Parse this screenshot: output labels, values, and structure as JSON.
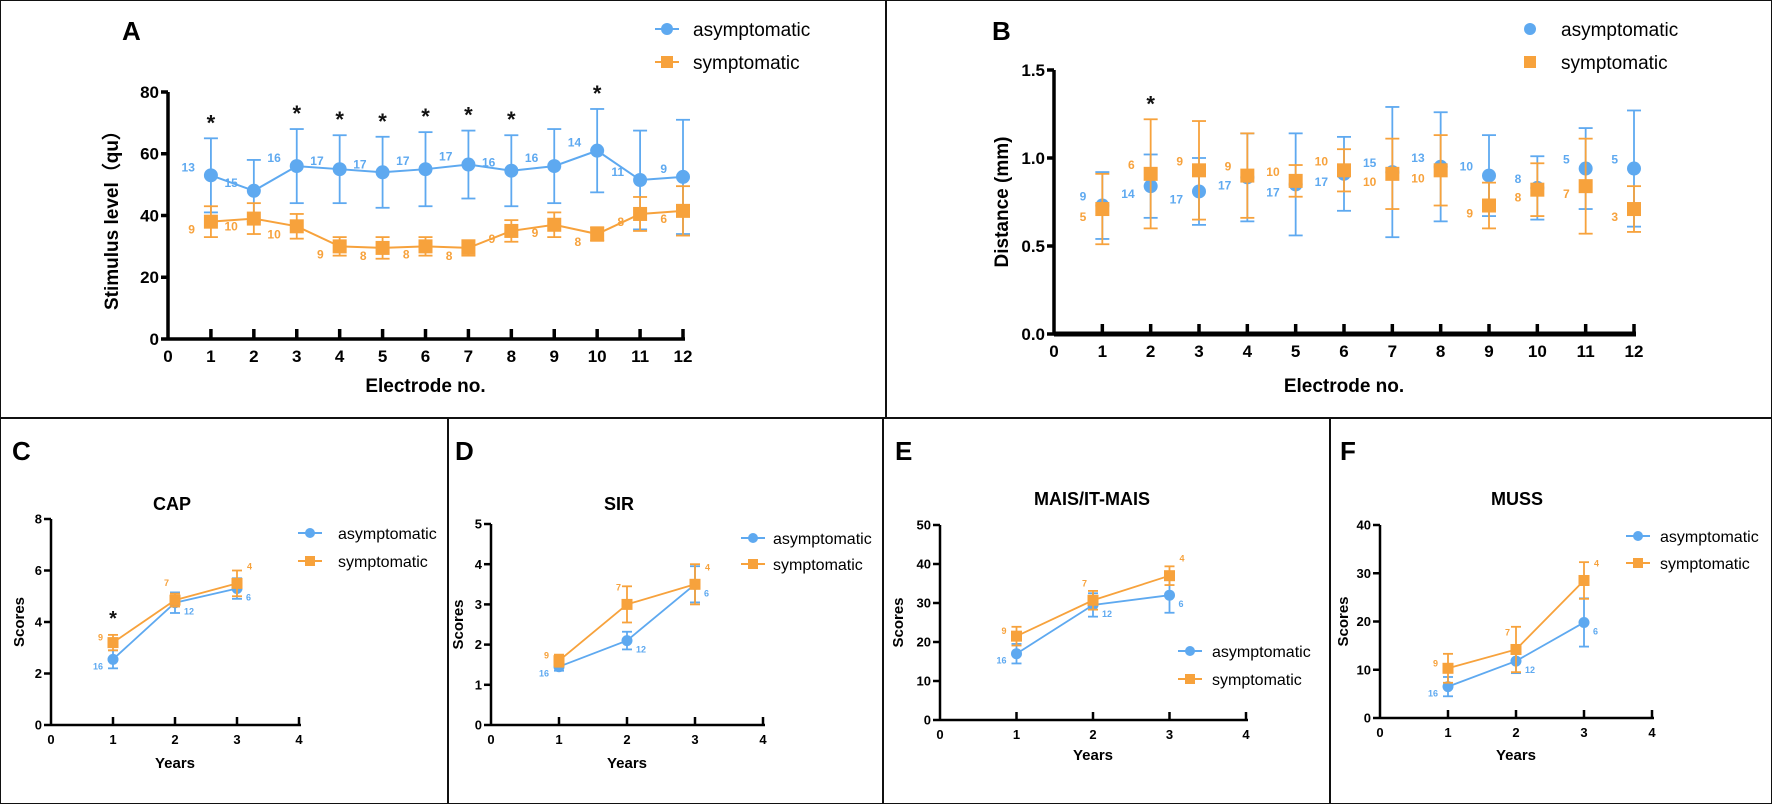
{
  "colors": {
    "asymptomatic": "#5ea9f0",
    "symptomatic": "#f7a23c",
    "axis": "#000000",
    "star": "#111111"
  },
  "legend_labels": [
    "asymptomatic",
    "symptomatic"
  ],
  "chart_data": [
    {
      "panel": "A",
      "type": "line",
      "title": "",
      "xlabel": "Electrode no.",
      "ylabel": "Stimulus level（qu）",
      "xlim": [
        0,
        12
      ],
      "ylim": [
        0,
        80
      ],
      "xticks": [
        0,
        1,
        2,
        3,
        4,
        5,
        6,
        7,
        8,
        9,
        10,
        11,
        12
      ],
      "yticks": [
        0,
        20,
        40,
        60,
        80
      ],
      "x": [
        1,
        2,
        3,
        4,
        5,
        6,
        7,
        8,
        9,
        10,
        11,
        12
      ],
      "series": [
        {
          "name": "asymptomatic",
          "marker": "circle",
          "connected": true,
          "values": [
            53,
            48,
            56,
            55,
            54,
            55,
            56.5,
            54.5,
            56,
            61,
            51.5,
            52.5
          ],
          "error": [
            12,
            10,
            12,
            11,
            11.5,
            12,
            11,
            11.5,
            12,
            13.5,
            16,
            18.5
          ],
          "n": [
            13,
            15,
            16,
            17,
            17,
            17,
            17,
            16,
            16,
            14,
            11,
            9
          ]
        },
        {
          "name": "symptomatic",
          "marker": "square",
          "connected": true,
          "values": [
            38,
            39,
            36.5,
            30,
            29.5,
            30,
            29.5,
            35,
            37,
            34,
            40.5,
            41.5
          ],
          "error": [
            5,
            5,
            4,
            3,
            3.5,
            3,
            2.5,
            3.5,
            4,
            2.2,
            5.5,
            8
          ],
          "n": [
            9,
            10,
            10,
            9,
            8,
            8,
            8,
            9,
            9,
            8,
            8,
            6
          ]
        }
      ],
      "significance_marks": {
        "symbol": "*",
        "x": [
          1,
          3,
          4,
          5,
          6,
          7,
          8,
          10
        ]
      },
      "legend": "top-right"
    },
    {
      "panel": "B",
      "type": "scatter",
      "title": "",
      "xlabel": "Electrode no.",
      "ylabel": "Distance (mm)",
      "xlim": [
        0,
        12
      ],
      "ylim": [
        0,
        1.5
      ],
      "xticks": [
        0,
        1,
        2,
        3,
        4,
        5,
        6,
        7,
        8,
        9,
        10,
        11,
        12
      ],
      "yticks": [
        0.0,
        0.5,
        1.0,
        1.5
      ],
      "x": [
        1,
        2,
        3,
        4,
        5,
        6,
        7,
        8,
        9,
        10,
        11,
        12
      ],
      "series": [
        {
          "name": "asymptomatic",
          "marker": "circle",
          "connected": false,
          "values": [
            0.73,
            0.84,
            0.81,
            0.89,
            0.85,
            0.91,
            0.92,
            0.95,
            0.9,
            0.83,
            0.94,
            0.94
          ],
          "error": [
            0.19,
            0.18,
            0.19,
            0.25,
            0.29,
            0.21,
            0.37,
            0.31,
            0.23,
            0.18,
            0.23,
            0.33
          ],
          "n": [
            9,
            14,
            17,
            17,
            17,
            17,
            15,
            13,
            10,
            8,
            5,
            5
          ]
        },
        {
          "name": "symptomatic",
          "marker": "square",
          "connected": false,
          "values": [
            0.71,
            0.91,
            0.93,
            0.9,
            0.87,
            0.93,
            0.91,
            0.93,
            0.73,
            0.82,
            0.84,
            0.71
          ],
          "error": [
            0.2,
            0.31,
            0.28,
            0.24,
            0.09,
            0.12,
            0.2,
            0.2,
            0.13,
            0.15,
            0.27,
            0.13
          ],
          "n": [
            5,
            6,
            9,
            9,
            10,
            10,
            10,
            10,
            9,
            8,
            7,
            3
          ]
        }
      ],
      "significance_marks": {
        "symbol": "*",
        "x": [
          2
        ]
      },
      "legend": "top-right"
    },
    {
      "panel": "C",
      "type": "line",
      "title": "CAP",
      "xlabel": "Years",
      "ylabel": "Scores",
      "xlim": [
        0,
        4
      ],
      "ylim": [
        0,
        8
      ],
      "xticks": [
        0,
        1,
        2,
        3,
        4
      ],
      "yticks": [
        0,
        2,
        4,
        6,
        8
      ],
      "x": [
        1,
        2,
        3
      ],
      "series": [
        {
          "name": "asymptomatic",
          "marker": "circle",
          "connected": true,
          "values": [
            2.55,
            4.75,
            5.3
          ],
          "error": [
            0.35,
            0.4,
            0.4
          ],
          "n": [
            16,
            12,
            6
          ]
        },
        {
          "name": "symptomatic",
          "marker": "square",
          "connected": true,
          "values": [
            3.2,
            4.85,
            5.5
          ],
          "error": [
            0.3,
            0.25,
            0.5
          ],
          "n": [
            9,
            7,
            4
          ]
        }
      ],
      "significance_marks": {
        "symbol": "*",
        "x": [
          1
        ]
      },
      "legend": "top-right"
    },
    {
      "panel": "D",
      "type": "line",
      "title": "SIR",
      "xlabel": "Years",
      "ylabel": "Scores",
      "xlim": [
        0,
        4
      ],
      "ylim": [
        0,
        5
      ],
      "xticks": [
        0,
        1,
        2,
        3,
        4
      ],
      "yticks": [
        0,
        1,
        2,
        3,
        4,
        5
      ],
      "x": [
        1,
        2,
        3
      ],
      "series": [
        {
          "name": "asymptomatic",
          "marker": "circle",
          "connected": true,
          "values": [
            1.45,
            2.1,
            3.5
          ],
          "error": [
            0.1,
            0.22,
            0.45
          ],
          "n": [
            16,
            12,
            6
          ]
        },
        {
          "name": "symptomatic",
          "marker": "square",
          "connected": true,
          "values": [
            1.6,
            3.0,
            3.5
          ],
          "error": [
            0.15,
            0.45,
            0.5
          ],
          "n": [
            9,
            7,
            4
          ]
        }
      ],
      "significance_marks": {
        "symbol": "*",
        "x": []
      },
      "legend": "top-right"
    },
    {
      "panel": "E",
      "type": "line",
      "title": "MAIS/IT-MAIS",
      "xlabel": "Years",
      "ylabel": "Scores",
      "xlim": [
        0,
        4
      ],
      "ylim": [
        0,
        50
      ],
      "xticks": [
        0,
        1,
        2,
        3,
        4
      ],
      "yticks": [
        0,
        10,
        20,
        30,
        40,
        50
      ],
      "x": [
        1,
        2,
        3
      ],
      "series": [
        {
          "name": "asymptomatic",
          "marker": "circle",
          "connected": true,
          "values": [
            17,
            29.5,
            32
          ],
          "error": [
            2.5,
            3,
            4.5
          ],
          "n": [
            16,
            12,
            6
          ]
        },
        {
          "name": "symptomatic",
          "marker": "square",
          "connected": true,
          "values": [
            21.5,
            30.7,
            37
          ],
          "error": [
            2.4,
            2.4,
            2.4
          ],
          "n": [
            9,
            7,
            4
          ]
        }
      ],
      "significance_marks": {
        "symbol": "*",
        "x": []
      },
      "legend": "bottom-right"
    },
    {
      "panel": "F",
      "type": "line",
      "title": "MUSS",
      "xlabel": "Years",
      "ylabel": "Scores",
      "xlim": [
        0,
        4
      ],
      "ylim": [
        0,
        40
      ],
      "xticks": [
        0,
        1,
        2,
        3,
        4
      ],
      "yticks": [
        0,
        10,
        20,
        30,
        40
      ],
      "x": [
        1,
        2,
        3
      ],
      "series": [
        {
          "name": "asymptomatic",
          "marker": "circle",
          "connected": true,
          "values": [
            6.5,
            11.8,
            19.8
          ],
          "error": [
            2,
            2.5,
            5
          ],
          "n": [
            16,
            12,
            6
          ]
        },
        {
          "name": "symptomatic",
          "marker": "square",
          "connected": true,
          "values": [
            10.3,
            14.2,
            28.5
          ],
          "error": [
            3,
            4.7,
            3.8
          ],
          "n": [
            9,
            7,
            4
          ]
        }
      ],
      "significance_marks": {
        "symbol": "*",
        "x": []
      },
      "legend": "top-right"
    }
  ]
}
